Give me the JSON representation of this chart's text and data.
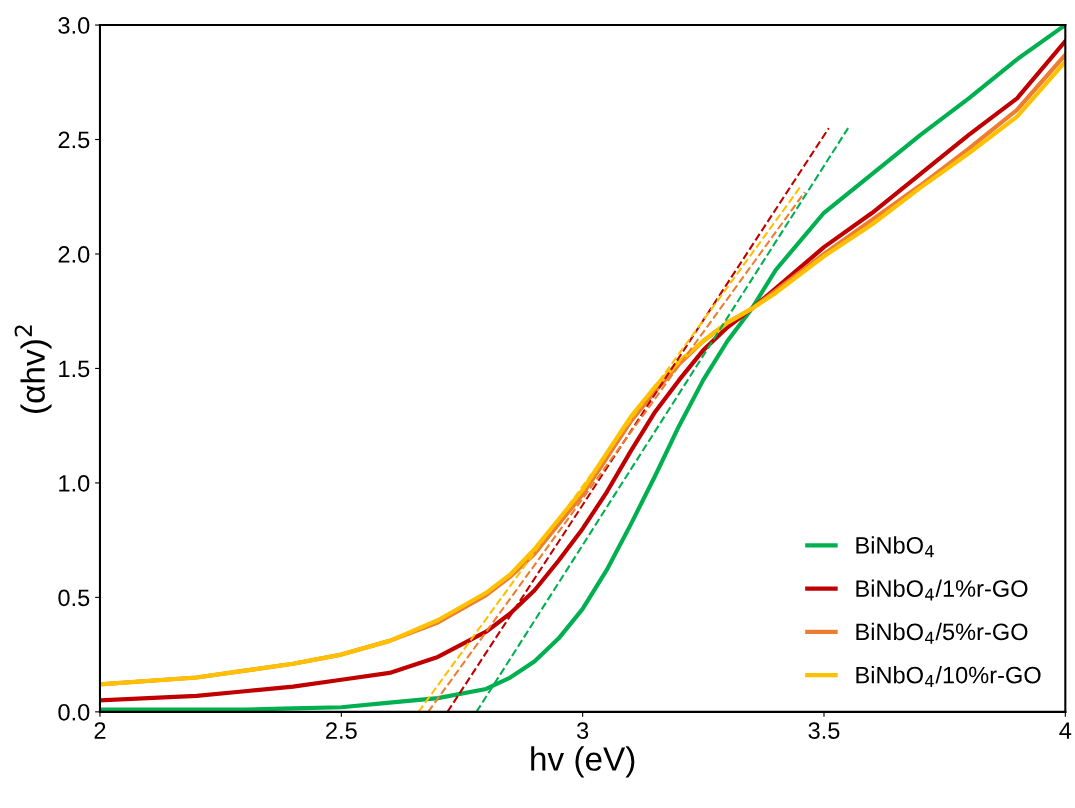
{
  "chart_data": {
    "type": "line",
    "xlabel": "hv (eV)",
    "ylabel": "(αhv)$^{2}$",
    "xlim": [
      2,
      4
    ],
    "ylim": [
      0,
      3.0
    ],
    "xticks": [
      2,
      2.5,
      3,
      3.5,
      4
    ],
    "yticks": [
      {
        "value": 0,
        "label": "0.0"
      },
      {
        "value": 0.5,
        "label": "0.5"
      },
      {
        "value": 1.0,
        "label": "1.0"
      },
      {
        "value": 1.5,
        "label": "1.5"
      },
      {
        "value": 2.0,
        "label": "2.0"
      },
      {
        "value": 2.5,
        "label": "2.5"
      },
      {
        "value": 3.0,
        "label": "3.0"
      }
    ],
    "grid": false,
    "legend": "bottom right",
    "line_style": "solid",
    "x": [
      2.0,
      2.2,
      2.3,
      2.4,
      2.5,
      2.6,
      2.7,
      2.8,
      2.85,
      2.9,
      2.95,
      3.0,
      3.05,
      3.1,
      3.15,
      3.2,
      3.25,
      3.3,
      3.35,
      3.4,
      3.5,
      3.6,
      3.7,
      3.8,
      3.9,
      4.0
    ],
    "series": [
      {
        "name": "BiNbO$_{4}$",
        "color": "#00b050",
        "values": [
          0.01,
          0.01,
          0.01,
          0.015,
          0.02,
          0.04,
          0.06,
          0.1,
          0.15,
          0.22,
          0.32,
          0.45,
          0.62,
          0.82,
          1.03,
          1.25,
          1.45,
          1.62,
          1.76,
          1.93,
          2.18,
          2.35,
          2.52,
          2.68,
          2.85,
          3.0
        ]
      },
      {
        "name": "BiNbO$_{4}$/1%r-GO",
        "color": "#c00000",
        "values": [
          0.05,
          0.07,
          0.09,
          0.11,
          0.14,
          0.17,
          0.24,
          0.35,
          0.43,
          0.53,
          0.66,
          0.8,
          0.96,
          1.14,
          1.31,
          1.45,
          1.58,
          1.68,
          1.76,
          1.85,
          2.03,
          2.18,
          2.35,
          2.52,
          2.68,
          2.93
        ]
      },
      {
        "name": "BiNbO$_{4}$/5%r-GO",
        "color": "#ed7d31",
        "values": [
          0.12,
          0.15,
          0.18,
          0.21,
          0.25,
          0.31,
          0.39,
          0.51,
          0.59,
          0.69,
          0.82,
          0.95,
          1.11,
          1.27,
          1.4,
          1.52,
          1.62,
          1.7,
          1.76,
          1.84,
          2.0,
          2.15,
          2.3,
          2.46,
          2.63,
          2.87
        ]
      },
      {
        "name": "BiNbO$_{4}$/10%r-GO",
        "color": "#ffc000",
        "values": [
          0.12,
          0.15,
          0.18,
          0.21,
          0.25,
          0.31,
          0.4,
          0.52,
          0.6,
          0.71,
          0.84,
          0.97,
          1.13,
          1.29,
          1.42,
          1.53,
          1.62,
          1.7,
          1.76,
          1.83,
          1.99,
          2.13,
          2.29,
          2.44,
          2.6,
          2.84
        ]
      },
      {
        "color": "#00b050",
        "line_style": "dashed",
        "x": [
          2.78,
          3.55
        ],
        "values": [
          0,
          2.55
        ]
      },
      {
        "color": "#c00000",
        "line_style": "dashed",
        "x": [
          2.72,
          3.51
        ],
        "values": [
          0,
          2.55
        ]
      },
      {
        "color": "#ed7d31",
        "line_style": "dashed",
        "x": [
          2.68,
          3.46
        ],
        "values": [
          0,
          2.27
        ]
      },
      {
        "color": "#ffc000",
        "line_style": "dashed",
        "x": [
          2.66,
          3.45
        ],
        "values": [
          0,
          2.29
        ]
      }
    ]
  }
}
